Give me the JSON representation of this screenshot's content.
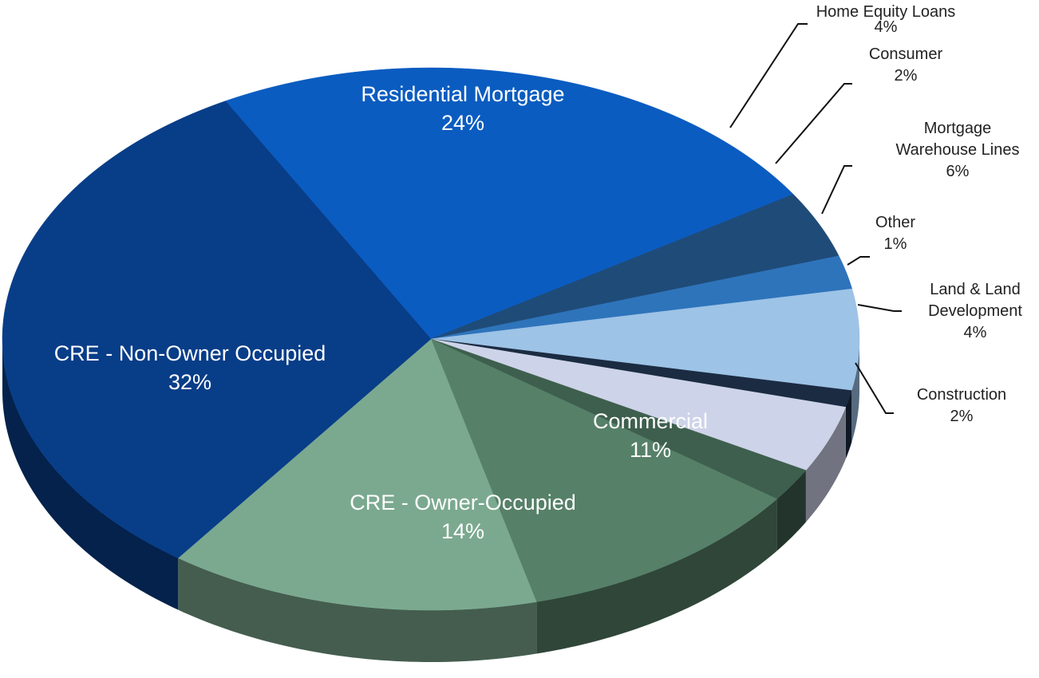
{
  "chart_data": {
    "type": "pie",
    "categories": [
      "Residential Mortgage",
      "Home Equity Loans",
      "Consumer",
      "Mortgage Warehouse Lines",
      "Other",
      "Land & Land Development",
      "Construction",
      "Commercial",
      "CRE - Owner-Occupied",
      "CRE - Non-Owner Occupied"
    ],
    "values": [
      24,
      4,
      2,
      6,
      1,
      4,
      2,
      11,
      14,
      32
    ],
    "value_labels": [
      "24%",
      "4%",
      "2%",
      "6%",
      "1%",
      "4%",
      "2%",
      "11%",
      "14%",
      "32%"
    ],
    "colors": [
      "#0b5cc0",
      "#1f4b78",
      "#2e74bb",
      "#9dc3e6",
      "#1b2b42",
      "#cdd3e8",
      "#3e5f4e",
      "#568068",
      "#7ba98f",
      "#083d88"
    ]
  }
}
